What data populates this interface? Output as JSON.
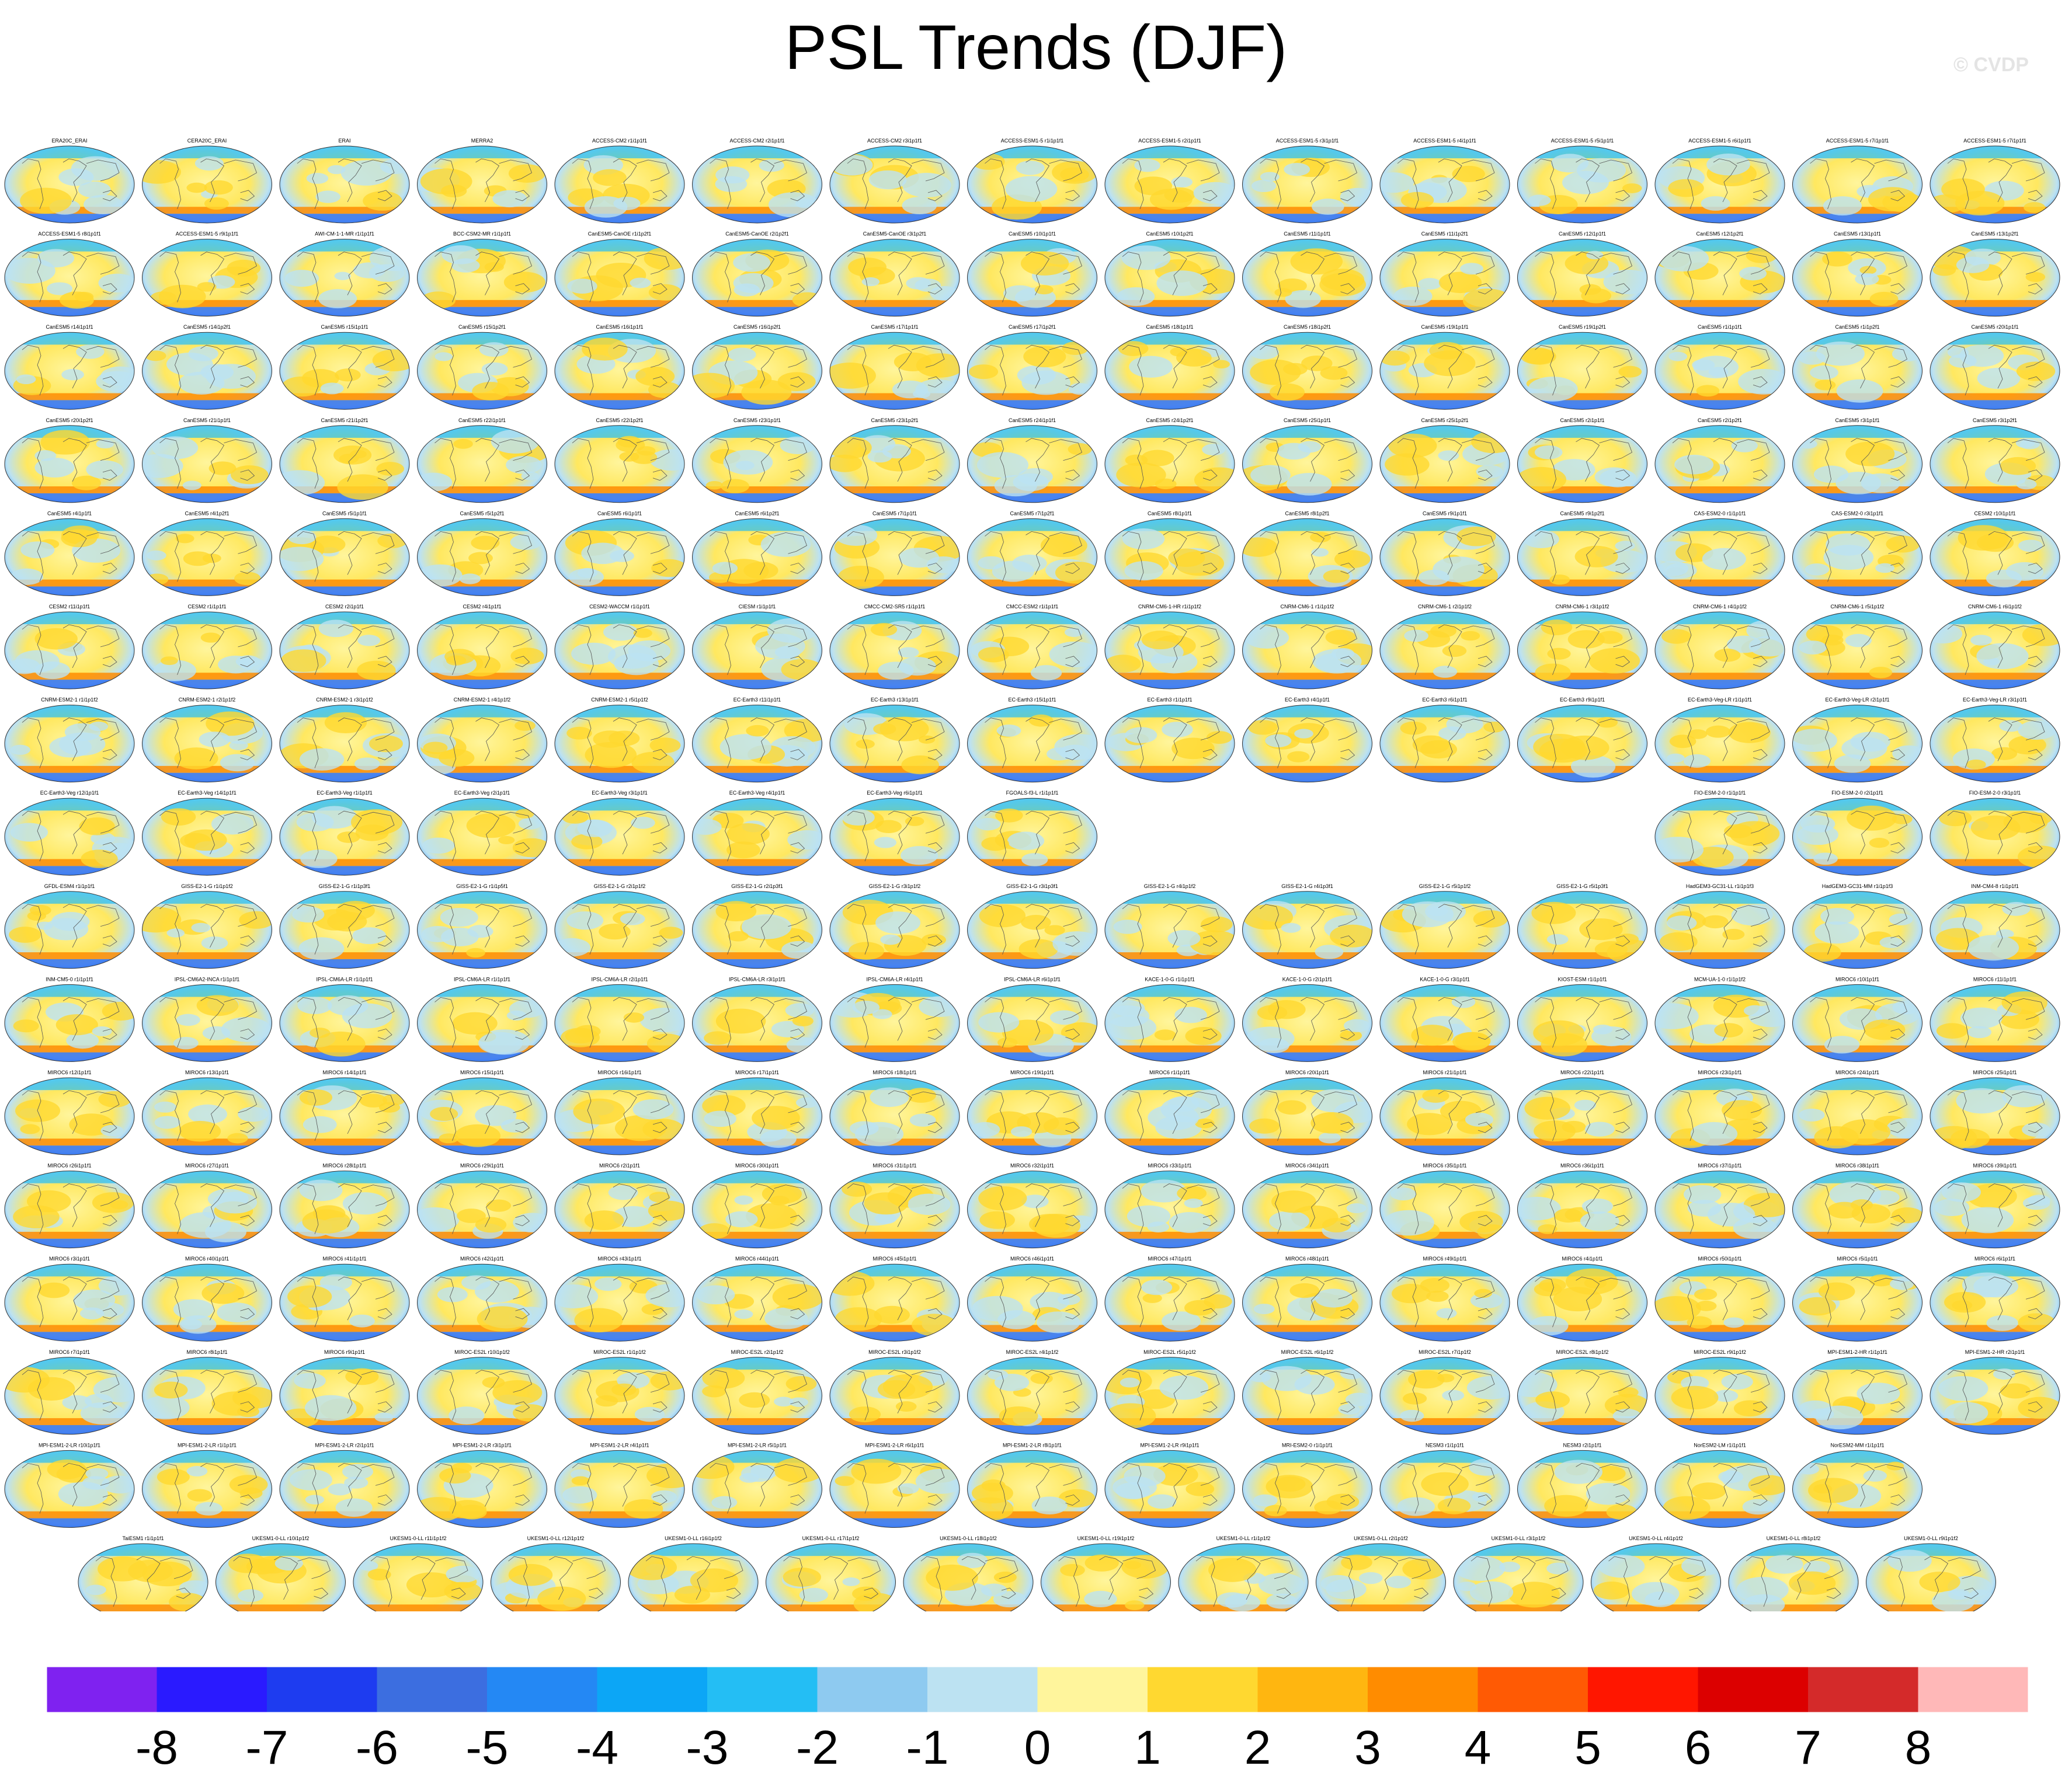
{
  "title": "PSL Trends (DJF)",
  "watermark": "© CVDP",
  "chart_data": {
    "type": "heatmap",
    "title": "PSL Trends (DJF)",
    "projection": "global map panels (one per dataset / ensemble member)",
    "colorbar": {
      "tick_labels": [
        "-8",
        "-7",
        "-6",
        "-5",
        "-4",
        "-3",
        "-2",
        "-1",
        "0",
        "1",
        "2",
        "3",
        "4",
        "5",
        "6",
        "7",
        "8"
      ],
      "colors": [
        "#7f22f0",
        "#2a1aff",
        "#1e3cf0",
        "#3c6ee0",
        "#2488f4",
        "#0ca6f6",
        "#24bef4",
        "#8ecaf0",
        "#bce2f2",
        "#fff59c",
        "#ffd830",
        "#ffb610",
        "#ff8c00",
        "#ff5a04",
        "#ff1600",
        "#dc0000",
        "#d42a2a",
        "#ffb8b8"
      ]
    },
    "panel_rows": [
      [
        "ERA20C_ERAI",
        "CERA20C_ERAI",
        "ERAI",
        "MERRA2",
        "ACCESS-CM2 r1i1p1f1",
        "ACCESS-CM2 r2i1p1f1",
        "ACCESS-CM2 r3i1p1f1",
        "ACCESS-ESM1-5 r1i1p1f1",
        "ACCESS-ESM1-5 r2i1p1f1",
        "ACCESS-ESM1-5 r3i1p1f1",
        "ACCESS-ESM1-5 r4i1p1f1",
        "ACCESS-ESM1-5 r5i1p1f1",
        "ACCESS-ESM1-5 r6i1p1f1",
        "ACCESS-ESM1-5 r7i1p1f1",
        "ACCESS-ESM1-5 r7i1p1f1"
      ],
      [
        "ACCESS-ESM1-5 r8i1p1f1",
        "ACCESS-ESM1-5 r9i1p1f1",
        "AWI-CM-1-1-MR r1i1p1f1",
        "BCC-CSM2-MR r1i1p1f1",
        "CanESM5-CanOE r1i1p2f1",
        "CanESM5-CanOE r2i1p2f1",
        "CanESM5-CanOE r3i1p2f1",
        "CanESM5 r10i1p1f1",
        "CanESM5 r10i1p2f1",
        "CanESM5 r11i1p1f1",
        "CanESM5 r11i1p2f1",
        "CanESM5 r12i1p1f1",
        "CanESM5 r12i1p2f1",
        "CanESM5 r13i1p1f1",
        "CanESM5 r13i1p2f1"
      ],
      [
        "CanESM5 r14i1p1f1",
        "CanESM5 r14i1p2f1",
        "CanESM5 r15i1p1f1",
        "CanESM5 r15i1p2f1",
        "CanESM5 r16i1p1f1",
        "CanESM5 r16i1p2f1",
        "CanESM5 r17i1p1f1",
        "CanESM5 r17i1p2f1",
        "CanESM5 r18i1p1f1",
        "CanESM5 r18i1p2f1",
        "CanESM5 r19i1p1f1",
        "CanESM5 r19i1p2f1",
        "CanESM5 r1i1p1f1",
        "CanESM5 r1i1p2f1",
        "CanESM5 r20i1p1f1"
      ],
      [
        "CanESM5 r20i1p2f1",
        "CanESM5 r21i1p1f1",
        "CanESM5 r21i1p2f1",
        "CanESM5 r22i1p1f1",
        "CanESM5 r22i1p2f1",
        "CanESM5 r23i1p1f1",
        "CanESM5 r23i1p2f1",
        "CanESM5 r24i1p1f1",
        "CanESM5 r24i1p2f1",
        "CanESM5 r25i1p1f1",
        "CanESM5 r25i1p2f1",
        "CanESM5 r2i1p1f1",
        "CanESM5 r2i1p2f1",
        "CanESM5 r3i1p1f1",
        "CanESM5 r3i1p2f1"
      ],
      [
        "CanESM5 r4i1p1f1",
        "CanESM5 r4i1p2f1",
        "CanESM5 r5i1p1f1",
        "CanESM5 r5i1p2f1",
        "CanESM5 r6i1p1f1",
        "CanESM5 r6i1p2f1",
        "CanESM5 r7i1p1f1",
        "CanESM5 r7i1p2f1",
        "CanESM5 r8i1p1f1",
        "CanESM5 r8i1p2f1",
        "CanESM5 r9i1p1f1",
        "CanESM5 r9i1p2f1",
        "CAS-ESM2-0 r1i1p1f1",
        "CAS-ESM2-0 r3i1p1f1",
        "CESM2 r10i1p1f1"
      ],
      [
        "CESM2 r11i1p1f1",
        "CESM2 r1i1p1f1",
        "CESM2 r2i1p1f1",
        "CESM2 r4i1p1f1",
        "CESM2-WACCM r1i1p1f1",
        "CIESM r1i1p1f1",
        "CMCC-CM2-SR5 r1i1p1f1",
        "CMCC-ESM2 r1i1p1f1",
        "CNRM-CM6-1-HR r1i1p1f2",
        "CNRM-CM6-1 r1i1p1f2",
        "CNRM-CM6-1 r2i1p1f2",
        "CNRM-CM6-1 r3i1p1f2",
        "CNRM-CM6-1 r4i1p1f2",
        "CNRM-CM6-1 r5i1p1f2",
        "CNRM-CM6-1 r6i1p1f2"
      ],
      [
        "CNRM-ESM2-1 r1i1p1f2",
        "CNRM-ESM2-1 r2i1p1f2",
        "CNRM-ESM2-1 r3i1p1f2",
        "CNRM-ESM2-1 r4i1p1f2",
        "CNRM-ESM2-1 r5i1p1f2",
        "EC-Earth3 r11i1p1f1",
        "EC-Earth3 r13i1p1f1",
        "EC-Earth3 r15i1p1f1",
        "EC-Earth3 r1i1p1f1",
        "EC-Earth3 r4i1p1f1",
        "EC-Earth3 r6i1p1f1",
        "EC-Earth3 r9i1p1f1",
        "EC-Earth3-Veg-LR r1i1p1f1",
        "EC-Earth3-Veg-LR r2i1p1f1",
        "EC-Earth3-Veg-LR r3i1p1f1"
      ],
      [
        "EC-Earth3-Veg r12i1p1f1",
        "EC-Earth3-Veg r14i1p1f1",
        "EC-Earth3-Veg r1i1p1f1",
        "EC-Earth3-Veg r2i1p1f1",
        "EC-Earth3-Veg r3i1p1f1",
        "EC-Earth3-Veg r4i1p1f1",
        "EC-Earth3-Veg r6i1p1f1",
        "FGOALS-f3-L r1i1p1f1",
        "",
        "",
        "",
        "",
        "FIO-ESM-2-0 r1i1p1f1",
        "FIO-ESM-2-0 r2i1p1f1",
        "FIO-ESM-2-0 r3i1p1f1"
      ],
      [
        "GFDL-ESM4 r1i1p1f1",
        "GISS-E2-1-G r1i1p1f2",
        "GISS-E2-1-G r1i1p3f1",
        "GISS-E2-1-G r1i1p5f1",
        "GISS-E2-1-G r2i1p1f2",
        "GISS-E2-1-G r2i1p3f1",
        "GISS-E2-1-G r3i1p1f2",
        "GISS-E2-1-G r3i1p3f1",
        "GISS-E2-1-G r4i1p1f2",
        "GISS-E2-1-G r4i1p3f1",
        "GISS-E2-1-G r5i1p1f2",
        "GISS-E2-1-G r5i1p3f1",
        "HadGEM3-GC31-LL r1i1p1f3",
        "HadGEM3-GC31-MM r1i1p1f3",
        "INM-CM4-8 r1i1p1f1"
      ],
      [
        "INM-CM5-0 r1i1p1f1",
        "IPSL-CM6A2-INCA r1i1p1f1",
        "IPSL-CM6A-LR r1i1p1f1",
        "IPSL-CM6A-LR r1i1p1f1",
        "IPSL-CM6A-LR r2i1p1f1",
        "IPSL-CM6A-LR r3i1p1f1",
        "IPSL-CM6A-LR r4i1p1f1",
        "IPSL-CM6A-LR r6i1p1f1",
        "KACE-1-0-G r1i1p1f1",
        "KACE-1-0-G r2i1p1f1",
        "KACE-1-0-G r3i1p1f1",
        "KIOST-ESM r1i1p1f1",
        "MCM-UA-1-0 r1i1p1f2",
        "MIROC6 r10i1p1f1",
        "MIROC6 r11i1p1f1"
      ],
      [
        "MIROC6 r12i1p1f1",
        "MIROC6 r13i1p1f1",
        "MIROC6 r14i1p1f1",
        "MIROC6 r15i1p1f1",
        "MIROC6 r16i1p1f1",
        "MIROC6 r17i1p1f1",
        "MIROC6 r18i1p1f1",
        "MIROC6 r19i1p1f1",
        "MIROC6 r1i1p1f1",
        "MIROC6 r20i1p1f1",
        "MIROC6 r21i1p1f1",
        "MIROC6 r22i1p1f1",
        "MIROC6 r23i1p1f1",
        "MIROC6 r24i1p1f1",
        "MIROC6 r25i1p1f1"
      ],
      [
        "MIROC6 r26i1p1f1",
        "MIROC6 r27i1p1f1",
        "MIROC6 r28i1p1f1",
        "MIROC6 r29i1p1f1",
        "MIROC6 r2i1p1f1",
        "MIROC6 r30i1p1f1",
        "MIROC6 r31i1p1f1",
        "MIROC6 r32i1p1f1",
        "MIROC6 r33i1p1f1",
        "MIROC6 r34i1p1f1",
        "MIROC6 r35i1p1f1",
        "MIROC6 r36i1p1f1",
        "MIROC6 r37i1p1f1",
        "MIROC6 r38i1p1f1",
        "MIROC6 r39i1p1f1"
      ],
      [
        "MIROC6 r3i1p1f1",
        "MIROC6 r40i1p1f1",
        "MIROC6 r41i1p1f1",
        "MIROC6 r42i1p1f1",
        "MIROC6 r43i1p1f1",
        "MIROC6 r44i1p1f1",
        "MIROC6 r45i1p1f1",
        "MIROC6 r46i1p1f1",
        "MIROC6 r47i1p1f1",
        "MIROC6 r48i1p1f1",
        "MIROC6 r49i1p1f1",
        "MIROC6 r4i1p1f1",
        "MIROC6 r50i1p1f1",
        "MIROC6 r5i1p1f1",
        "MIROC6 r6i1p1f1"
      ],
      [
        "MIROC6 r7i1p1f1",
        "MIROC6 r8i1p1f1",
        "MIROC6 r9i1p1f1",
        "MIROC-ES2L r10i1p1f2",
        "MIROC-ES2L r1i1p1f2",
        "MIROC-ES2L r2i1p1f2",
        "MIROC-ES2L r3i1p1f2",
        "MIROC-ES2L r4i1p1f2",
        "MIROC-ES2L r5i1p1f2",
        "MIROC-ES2L r6i1p1f2",
        "MIROC-ES2L r7i1p1f2",
        "MIROC-ES2L r8i1p1f2",
        "MIROC-ES2L r9i1p1f2",
        "MPI-ESM1-2-HR r1i1p1f1",
        "MPI-ESM1-2-HR r2i1p1f1"
      ],
      [
        "MPI-ESM1-2-LR r10i1p1f1",
        "MPI-ESM1-2-LR r1i1p1f1",
        "MPI-ESM1-2-LR r2i1p1f1",
        "MPI-ESM1-2-LR r3i1p1f1",
        "MPI-ESM1-2-LR r4i1p1f1",
        "MPI-ESM1-2-LR r5i1p1f1",
        "MPI-ESM1-2-LR r6i1p1f1",
        "MPI-ESM1-2-LR r8i1p1f1",
        "MPI-ESM1-2-LR r9i1p1f1",
        "MRI-ESM2-0 r1i1p1f1",
        "NESM3 r1i1p1f1",
        "NESM3 r2i1p1f1",
        "NorESM2-LM r1i1p1f1",
        "NorESM2-MM r1i1p1f1",
        ""
      ],
      [
        "TaiESM1 r1i1p1f1",
        "UKESM1-0-LL r10i1p1f2",
        "UKESM1-0-LL r11i1p1f2",
        "UKESM1-0-LL r12i1p1f2",
        "UKESM1-0-LL r16i1p1f2",
        "UKESM1-0-LL r17i1p1f2",
        "UKESM1-0-LL r18i1p1f2",
        "UKESM1-0-LL r19i1p1f2",
        "UKESM1-0-LL r1i1p1f2",
        "UKESM1-0-LL r2i1p1f2",
        "UKESM1-0-LL r3i1p1f2",
        "UKESM1-0-LL r4i1p1f2",
        "UKESM1-0-LL r8i1p1f2",
        "UKESM1-0-LL r9i1p1f2"
      ]
    ]
  }
}
